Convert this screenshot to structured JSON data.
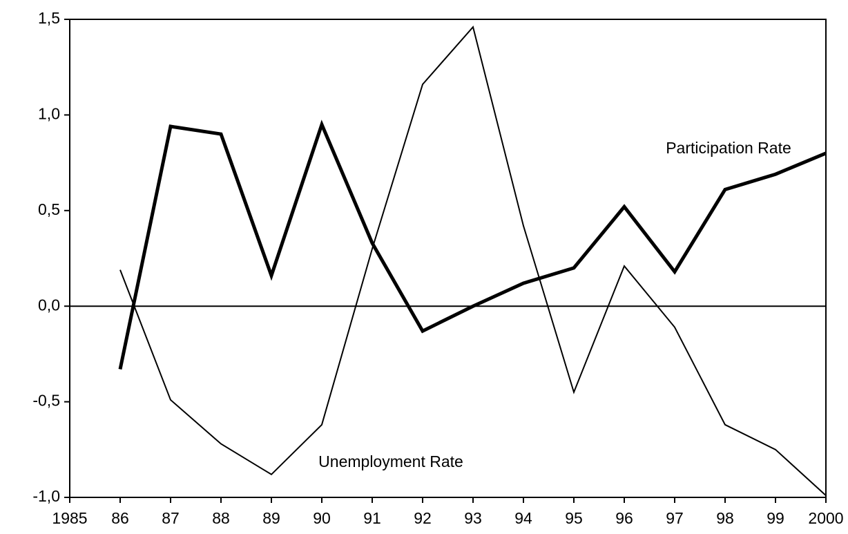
{
  "chart_data": {
    "type": "line",
    "x": [
      1986,
      1987,
      1988,
      1989,
      1990,
      1991,
      1992,
      1993,
      1994,
      1995,
      1996,
      1997,
      1998,
      1999,
      2000
    ],
    "series": [
      {
        "name": "Participation Rate",
        "color": "#000000",
        "width": 5,
        "values": [
          -0.33,
          0.94,
          0.9,
          0.16,
          0.95,
          0.33,
          -0.13,
          0.0,
          0.12,
          0.2,
          0.52,
          0.18,
          0.61,
          0.69,
          0.8
        ]
      },
      {
        "name": "Unemployment Rate",
        "color": "#000000",
        "width": 2,
        "values": [
          0.19,
          -0.49,
          -0.72,
          -0.88,
          -0.62,
          0.3,
          1.16,
          1.46,
          0.42,
          -0.45,
          0.21,
          -0.11,
          -0.62,
          -0.75,
          -0.99
        ]
      }
    ],
    "xlim": [
      1985,
      2000
    ],
    "xticks": [
      1985,
      {
        "value": 1986,
        "label": "86"
      },
      {
        "value": 1987,
        "label": "87"
      },
      {
        "value": 1988,
        "label": "88"
      },
      {
        "value": 1989,
        "label": "89"
      },
      {
        "value": 1990,
        "label": "90"
      },
      {
        "value": 1991,
        "label": "91"
      },
      {
        "value": 1992,
        "label": "92"
      },
      {
        "value": 1993,
        "label": "93"
      },
      {
        "value": 1994,
        "label": "94"
      },
      {
        "value": 1995,
        "label": "95"
      },
      {
        "value": 1996,
        "label": "96"
      },
      {
        "value": 1997,
        "label": "97"
      },
      {
        "value": 1998,
        "label": "98"
      },
      {
        "value": 1999,
        "label": "99"
      },
      2000
    ],
    "ylim": [
      -1.0,
      1.5
    ],
    "yticks": [
      {
        "value": -1.0,
        "label": "-1,0"
      },
      {
        "value": -0.5,
        "label": "-0,5"
      },
      {
        "value": 0,
        "label": "0,0"
      },
      {
        "value": 0.5,
        "label": "0,5"
      },
      {
        "value": 1.0,
        "label": "1,0"
      },
      {
        "value": 1.5,
        "label": "1,5"
      }
    ],
    "zero_line": true,
    "grid": false
  }
}
